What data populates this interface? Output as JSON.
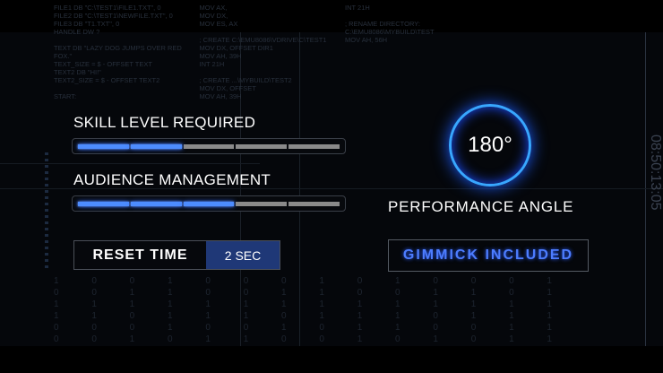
{
  "skills": [
    {
      "label": "SKILL LEVEL REQUIRED",
      "level": 2,
      "max": 5
    },
    {
      "label": "AUDIENCE MANAGEMENT",
      "level": 3,
      "max": 5
    }
  ],
  "reset": {
    "label": "RESET TIME",
    "value": "2 SEC"
  },
  "angle": {
    "value": "180°",
    "label": "PERFORMANCE ANGLE"
  },
  "gimmick": "GIMMICK INCLUDED",
  "timecode": "08:50:13:05",
  "background": {
    "binary": [
      "1 0 0 1 0 0 0 1 0 1 0 0 0 1",
      "0 0 1 1 0 0 1 1 0 0 1 1 0 1",
      "1 1 1 1 1 1 1 1 1 1 1 1 1 1",
      "1 1 0 1 1 1 0 1 1 1 0 1 1 1",
      "0 0 0 1 0 0 1 0 1 1 0 0 1 1",
      "0 0 1 0 1 1 0 0 1 0 1 0 1 1"
    ],
    "code": "FILE1 DB \"C:\\TEST1\\FILE1.TXT\", 0\nFILE2 DB \"C:\\TEST1\\NEWFILE.TXT\", 0\nFILE3 DB \"T1.TXT\", 0\nHANDLE DW ?\n\nTEXT DB \"LAZY DOG JUMPS OVER RED FOX.\"\nTEXT_SIZE = $ - OFFSET TEXT\nTEXT2 DB \"HI!\"\nTEXT2_SIZE = $ - OFFSET TEXT2\n\nSTART:\nMOV AX,\nMOV DX,\nMOV ES, AX\n\n; CREATE C:\\EMU8086\\VDRIVE\\C\\TEST1\nMOV DX, OFFSET DIR1\nMOV AH, 39H\nINT 21H\n\n; CREATE ...\\MYBUILD\\TEST2\nMOV DX, OFFSET\nMOV AH, 39H\nINT 21H\n\n; RENAME DIRECTORY: C:\\EMU8086\\MYBUILD\\TEST\nMOV AH, 56H"
  },
  "colors": {
    "accent": "#4d8cff",
    "ring": "#38a6ff",
    "reset_value_bg": "#1f3877",
    "inactive": "#8a8a8a"
  }
}
